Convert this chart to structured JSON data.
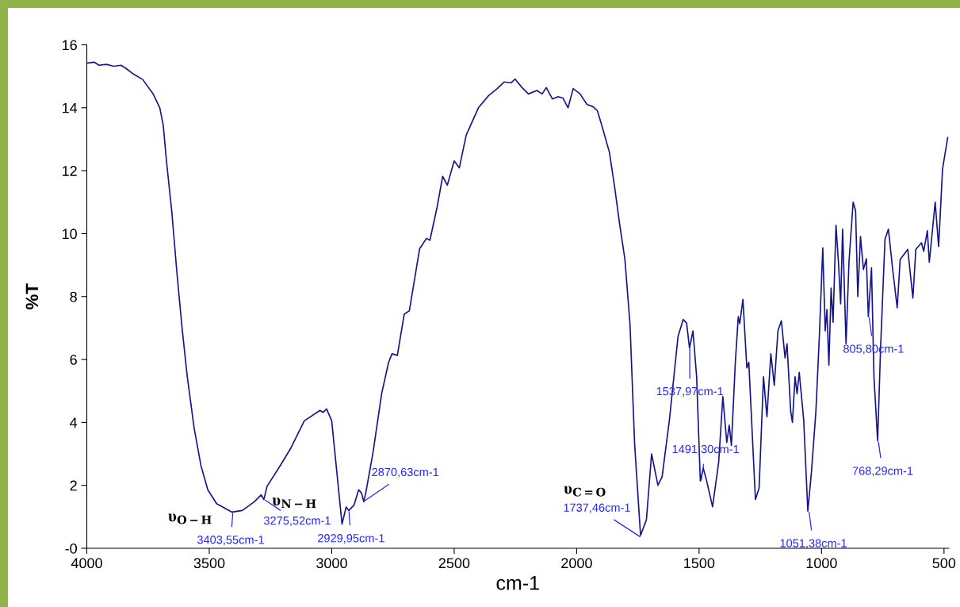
{
  "chart_data": {
    "type": "line",
    "xlabel": "cm-1",
    "ylabel": "%T",
    "xlim": [
      4000,
      480
    ],
    "xticks": [
      4000,
      3500,
      3000,
      2500,
      2000,
      1500,
      1000,
      500
    ],
    "ylim": [
      0,
      16
    ],
    "yticks": [
      {
        "value": 0,
        "label": "-0"
      },
      2,
      4,
      6,
      8,
      10,
      12,
      14,
      16
    ],
    "grid": false,
    "legend": false,
    "marker": "none",
    "line_style": "solid",
    "series": [
      {
        "color": "#16168a",
        "x": [
          4000,
          3970,
          3950,
          3920,
          3890,
          3860,
          3840,
          3815,
          3772,
          3730,
          3702,
          3688,
          3674,
          3653,
          3632,
          3611,
          3590,
          3562,
          3534,
          3506,
          3470,
          3407,
          3365,
          3316,
          3288,
          3277,
          3264,
          3210,
          3168,
          3112,
          3048,
          3035,
          3021,
          3000,
          2979,
          2958,
          2941,
          2930,
          2909,
          2890,
          2878,
          2869,
          2860,
          2831,
          2796,
          2768,
          2754,
          2732,
          2704,
          2683,
          2641,
          2613,
          2599,
          2570,
          2547,
          2528,
          2500,
          2479,
          2451,
          2401,
          2359,
          2324,
          2296,
          2268,
          2251,
          2225,
          2197,
          2162,
          2141,
          2124,
          2099,
          2077,
          2056,
          2035,
          2014,
          1986,
          1958,
          1932,
          1915,
          1894,
          1866,
          1845,
          1824,
          1803,
          1782,
          1763,
          1739,
          1715,
          1694,
          1668,
          1651,
          1621,
          1586,
          1565,
          1551,
          1539,
          1525,
          1510,
          1495,
          1483,
          1469,
          1445,
          1420,
          1403,
          1387,
          1377,
          1368,
          1352,
          1340,
          1334,
          1321,
          1305,
          1297,
          1270,
          1255,
          1237,
          1223,
          1207,
          1193,
          1178,
          1164,
          1149,
          1141,
          1126,
          1119,
          1108,
          1100,
          1091,
          1073,
          1056,
          1041,
          1023,
          1009,
          995,
          985,
          978,
          970,
          961,
          953,
          941,
          931,
          922,
          914,
          900,
          888,
          871,
          861,
          852,
          841,
          829,
          817,
          809,
          796,
          786,
          771,
          759,
          741,
          727,
          709,
          691,
          679,
          648,
          627,
          615,
          592,
          583,
          568,
          560,
          536,
          522,
          506,
          485
        ],
        "values": [
          15.42,
          15.45,
          15.35,
          15.38,
          15.32,
          15.35,
          15.25,
          15.1,
          14.9,
          14.45,
          14.0,
          13.45,
          12.25,
          10.7,
          8.75,
          7.0,
          5.47,
          3.83,
          2.63,
          1.86,
          1.42,
          1.15,
          1.2,
          1.48,
          1.7,
          1.55,
          1.97,
          2.63,
          3.17,
          4.05,
          4.38,
          4.32,
          4.43,
          4.05,
          2.41,
          0.77,
          1.31,
          1.2,
          1.37,
          1.86,
          1.75,
          1.48,
          1.8,
          3.06,
          4.92,
          5.9,
          6.18,
          6.13,
          7.44,
          7.55,
          9.52,
          9.85,
          9.79,
          10.83,
          11.82,
          11.54,
          12.31,
          12.09,
          13.13,
          14.0,
          14.39,
          14.61,
          14.82,
          14.79,
          14.91,
          14.66,
          14.44,
          14.55,
          14.44,
          14.64,
          14.28,
          14.35,
          14.31,
          14.0,
          14.61,
          14.44,
          14.11,
          14.03,
          13.9,
          13.35,
          12.58,
          11.49,
          10.28,
          9.19,
          7.11,
          3.28,
          0.41,
          0.91,
          3.0,
          2.0,
          2.27,
          4.09,
          6.73,
          7.27,
          7.16,
          6.36,
          6.91,
          5.45,
          2.14,
          2.55,
          2.14,
          1.32,
          2.73,
          4.82,
          3.36,
          3.91,
          3.27,
          5.91,
          7.36,
          7.14,
          7.91,
          5.73,
          5.91,
          1.55,
          1.91,
          5.45,
          4.18,
          6.18,
          5.18,
          6.91,
          7.23,
          6.05,
          6.5,
          4.36,
          4.0,
          5.45,
          4.91,
          5.59,
          4.09,
          1.18,
          2.45,
          4.36,
          6.73,
          9.55,
          6.91,
          7.59,
          5.82,
          8.27,
          7.18,
          10.27,
          9.09,
          7.77,
          10.14,
          6.5,
          9.09,
          11.0,
          10.73,
          8.0,
          9.91,
          8.86,
          9.2,
          7.36,
          8.91,
          5.45,
          3.41,
          6.36,
          9.82,
          10.14,
          8.82,
          7.64,
          9.18,
          9.5,
          7.95,
          9.5,
          9.71,
          9.44,
          10.09,
          9.09,
          11.0,
          9.59,
          12.05,
          13.05
        ]
      }
    ],
    "annotations": [
      {
        "text": "3403,55cm-1",
        "x": 3403.55,
        "y": 1.15
      },
      {
        "text": "3275,52cm-1",
        "x": 3275.52,
        "y": 1.55
      },
      {
        "text": "2929,95cm-1",
        "x": 2929.95,
        "y": 1.2
      },
      {
        "text": "2870,63cm-1",
        "x": 2870.63,
        "y": 1.48
      },
      {
        "text": "1737,46cm-1",
        "x": 1737.46,
        "y": 0.35
      },
      {
        "text": "1537,97cm-1",
        "x": 1537.97,
        "y": 6.36
      },
      {
        "text": "1491,30cm-1",
        "x": 1491.3,
        "y": 2.14
      },
      {
        "text": "1051,38cm-1",
        "x": 1051.38,
        "y": 1.18
      },
      {
        "text": "805,80cm-1",
        "x": 805.8,
        "y": 7.36
      },
      {
        "text": "768,29cm-1",
        "x": 768.29,
        "y": 3.41
      },
      "υ$_{O−H}$",
      "υ$_{N−H}$",
      "υ$_{C=O}$"
    ]
  }
}
